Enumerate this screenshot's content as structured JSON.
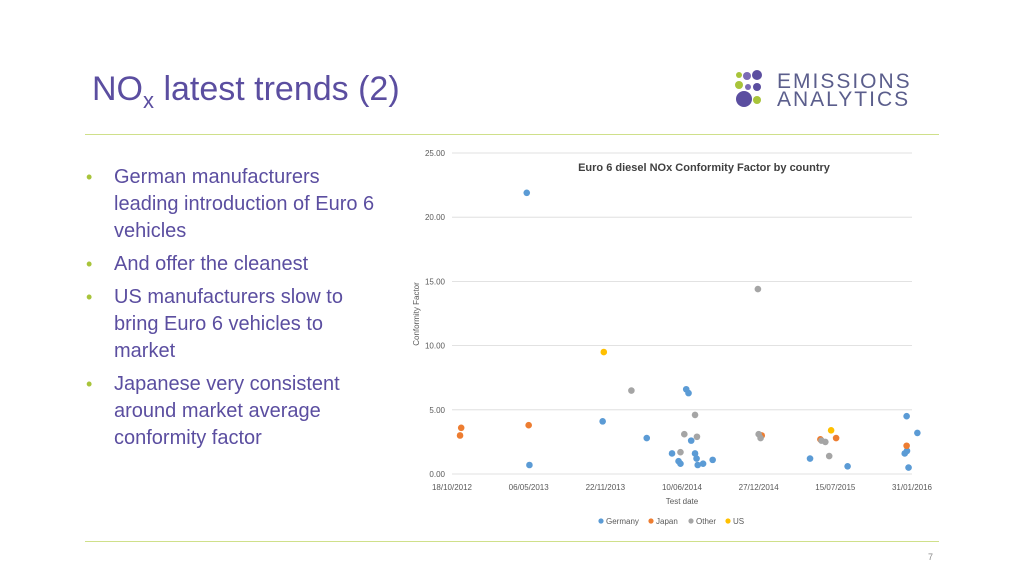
{
  "slide": {
    "title_main": "NO",
    "title_sub": "x",
    "title_rest": " latest trends (2)",
    "page_number": "7",
    "accent_color": "#cfe08a",
    "title_color": "#5b4ea0"
  },
  "logo": {
    "line1": "EMISSIONS",
    "line2": "ANALYTICS"
  },
  "bullets": [
    "German manufacturers leading introduction of Euro 6 vehicles",
    "And offer the cleanest",
    "US manufacturers slow to bring Euro 6 vehicles to market",
    "Japanese very consistent around market average conformity factor"
  ],
  "chart_data": {
    "type": "scatter",
    "title": "Euro 6 diesel NOx Conformity Factor by country",
    "xlabel": "Test date",
    "ylabel": "Conformity Factor",
    "y_ticks": [
      "0.00",
      "5.00",
      "10.00",
      "15.00",
      "20.00",
      "25.00"
    ],
    "ylim": [
      0,
      25
    ],
    "x_ticks": [
      "18/10/2012",
      "06/05/2013",
      "22/11/2013",
      "10/06/2014",
      "27/12/2014",
      "15/07/2015",
      "31/01/2016"
    ],
    "xlim": [
      "2012-10-18",
      "2016-01-31"
    ],
    "grid": true,
    "legend_position": "bottom",
    "series": [
      {
        "name": "Germany",
        "color": "#5b9bd5",
        "points": [
          [
            "2013-05-01",
            21.9
          ],
          [
            "2013-05-08",
            0.7
          ],
          [
            "2013-11-15",
            4.1
          ],
          [
            "2014-03-10",
            2.8
          ],
          [
            "2014-05-15",
            1.6
          ],
          [
            "2014-06-01",
            1.0
          ],
          [
            "2014-06-06",
            0.8
          ],
          [
            "2014-06-21",
            6.6
          ],
          [
            "2014-06-27",
            6.3
          ],
          [
            "2014-07-04",
            2.6
          ],
          [
            "2014-07-14",
            1.6
          ],
          [
            "2014-07-18",
            1.2
          ],
          [
            "2014-07-21",
            0.7
          ],
          [
            "2014-08-04",
            0.8
          ],
          [
            "2014-08-29",
            1.1
          ],
          [
            "2015-05-10",
            1.2
          ],
          [
            "2015-08-16",
            0.6
          ],
          [
            "2016-01-12",
            1.6
          ],
          [
            "2016-01-17",
            4.5
          ],
          [
            "2016-01-18",
            1.8
          ],
          [
            "2016-01-22",
            0.5
          ],
          [
            "2016-02-14",
            3.2
          ]
        ]
      },
      {
        "name": "Japan",
        "color": "#ed7d31",
        "points": [
          [
            "2012-11-08",
            3.0
          ],
          [
            "2012-11-11",
            3.6
          ],
          [
            "2013-05-06",
            3.8
          ],
          [
            "2015-01-04",
            3.0
          ],
          [
            "2015-06-06",
            2.7
          ],
          [
            "2015-07-17",
            2.8
          ],
          [
            "2016-01-17",
            2.2
          ]
        ]
      },
      {
        "name": "Other",
        "color": "#a5a5a5",
        "points": [
          [
            "2014-01-29",
            6.5
          ],
          [
            "2014-06-06",
            1.7
          ],
          [
            "2014-06-16",
            3.1
          ],
          [
            "2014-07-14",
            4.6
          ],
          [
            "2014-07-19",
            2.9
          ],
          [
            "2014-12-25",
            14.4
          ],
          [
            "2014-12-27",
            3.1
          ],
          [
            "2015-01-01",
            2.8
          ],
          [
            "2015-06-09",
            2.6
          ],
          [
            "2015-06-19",
            2.5
          ],
          [
            "2015-06-29",
            1.4
          ]
        ]
      },
      {
        "name": "US",
        "color": "#ffc000",
        "points": [
          [
            "2013-11-18",
            9.5
          ],
          [
            "2015-07-04",
            3.4
          ]
        ]
      }
    ]
  }
}
